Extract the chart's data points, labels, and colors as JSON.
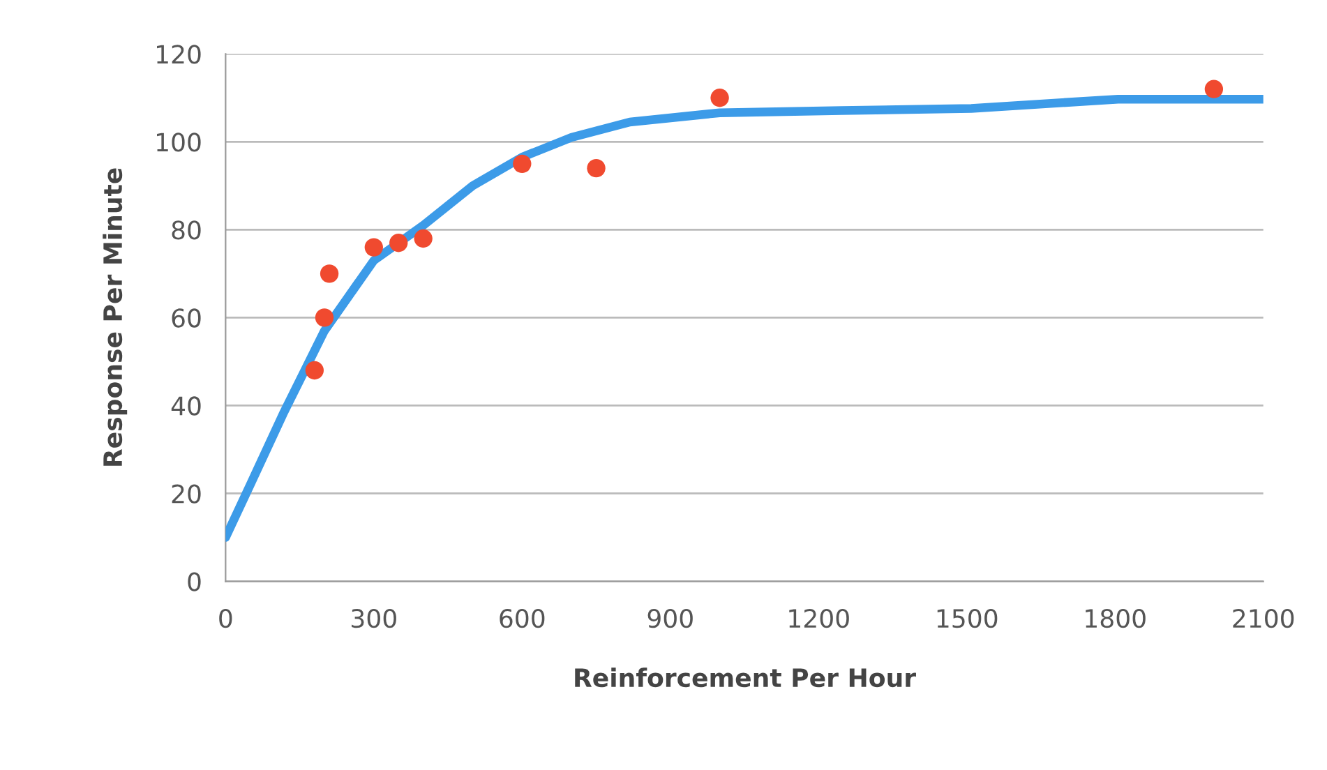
{
  "chart_data": {
    "type": "scatter",
    "xlabel": "Reinforcement Per Hour",
    "ylabel": "Response Per Minute",
    "xlim": [
      0,
      2100
    ],
    "xticks": [
      0,
      300,
      600,
      900,
      1200,
      1500,
      1800,
      2100
    ],
    "ylim": [
      0,
      120
    ],
    "yticks": [
      0,
      20,
      40,
      60,
      80,
      100,
      120
    ],
    "grid": "y",
    "series": [
      {
        "color": "#f04a2f",
        "marker": "circle",
        "x": [
          180,
          200,
          210,
          300,
          350,
          400,
          600,
          750,
          1000,
          2000
        ],
        "values": [
          48,
          60,
          70,
          76,
          77,
          78,
          95,
          94,
          110,
          112
        ]
      },
      {
        "type": "line",
        "color": "#3c9be8",
        "line_style": "solid",
        "marker": "none",
        "x": [
          0,
          50,
          116,
          200,
          250,
          300,
          400,
          500,
          600,
          700,
          818,
          1000,
          1246,
          1509,
          1806,
          2100
        ],
        "values": [
          10,
          22,
          38,
          57,
          65,
          73,
          81,
          90,
          96.5,
          101,
          104.5,
          106.6,
          107.1,
          107.6,
          109.7,
          109.7
        ]
      }
    ]
  }
}
